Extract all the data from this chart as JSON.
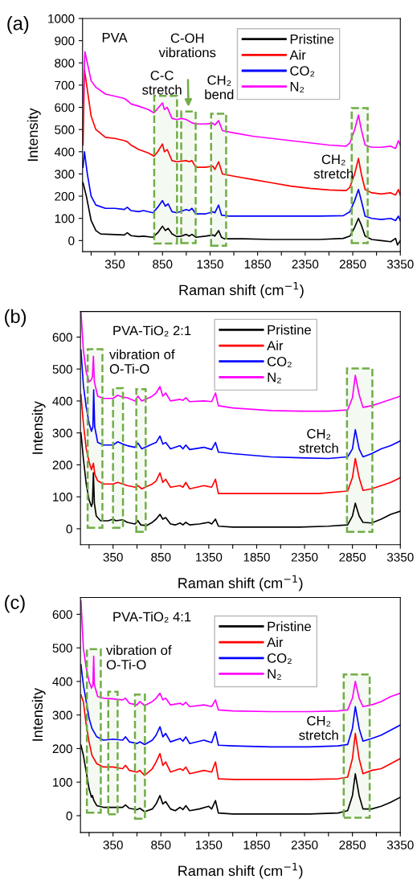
{
  "chart_data": [
    {
      "type": "line",
      "xlabel": "Raman shift (cm$^{−1}$)",
      "ylabel": "Intensity",
      "xlim": [
        10,
        3350
      ],
      "ylim": [
        -50,
        1000
      ],
      "xticks": [
        350,
        850,
        1350,
        1850,
        2350,
        2850,
        3350,
        {
          "value": 100,
          "label": null
        },
        {
          "value": 600,
          "label": null
        },
        {
          "value": 1100,
          "label": null
        },
        {
          "value": 1600,
          "label": null
        },
        {
          "value": 2100,
          "label": null
        },
        {
          "value": 2600,
          "label": null
        },
        {
          "value": 3100,
          "label": null
        }
      ],
      "yticks": [
        0,
        100,
        200,
        300,
        400,
        500,
        600,
        700,
        800,
        900,
        1000
      ],
      "legend": "top right",
      "grid": false,
      "line_style": "solid",
      "marker": "none",
      "annotations": [
        "(a)",
        "PVA",
        "C-C\nstretch",
        "C-OH\nvibrations",
        "CH₂\nbend",
        "CH₂\nstretch"
      ],
      "bands": [
        {
          "axis": "x",
          "from": 763,
          "to": 1003,
          "color": "#70ad47"
        },
        {
          "axis": "x",
          "from": 1047,
          "to": 1199,
          "color": "#70ad47"
        },
        {
          "axis": "x",
          "from": 1361,
          "to": 1519,
          "color": "#70ad47"
        },
        {
          "axis": "x",
          "from": 2839,
          "to": 3007,
          "color": "#70ad47"
        }
      ],
      "series": [
        {
          "name": "Pristine",
          "color": "#000000",
          "x": [
            15,
            50,
            100,
            150,
            200,
            300,
            450,
            480,
            520,
            600,
            650,
            750,
            800,
            850,
            880,
            910,
            950,
            1000,
            1050,
            1100,
            1130,
            1160,
            1200,
            1300,
            1380,
            1400,
            1440,
            1470,
            1500,
            1700,
            2000,
            2500,
            2750,
            2820,
            2870,
            2910,
            2940,
            2980,
            3050,
            3150,
            3250,
            3300,
            3320,
            3350
          ],
          "values": [
            260,
            200,
            90,
            45,
            30,
            28,
            25,
            35,
            22,
            18,
            20,
            15,
            35,
            65,
            45,
            55,
            30,
            18,
            20,
            28,
            20,
            28,
            15,
            20,
            25,
            20,
            45,
            15,
            8,
            8,
            5,
            5,
            10,
            20,
            60,
            100,
            70,
            20,
            5,
            0,
            -5,
            10,
            -20,
            0
          ]
        },
        {
          "name": "Air",
          "color": "#ff0000",
          "x": [
            15,
            30,
            60,
            100,
            150,
            250,
            350,
            450,
            480,
            520,
            600,
            700,
            760,
            800,
            850,
            870,
            900,
            950,
            1000,
            1100,
            1130,
            1160,
            1200,
            1300,
            1380,
            1400,
            1440,
            1480,
            1600,
            1800,
            2000,
            2200,
            2400,
            2600,
            2780,
            2820,
            2870,
            2910,
            2940,
            2980,
            3050,
            3150,
            3250,
            3300,
            3330,
            3350
          ],
          "values": [
            430,
            770,
            680,
            560,
            500,
            465,
            460,
            450,
            445,
            430,
            410,
            395,
            380,
            400,
            435,
            400,
            410,
            360,
            355,
            360,
            355,
            360,
            330,
            330,
            335,
            320,
            355,
            300,
            290,
            275,
            260,
            245,
            235,
            228,
            225,
            240,
            300,
            370,
            300,
            230,
            215,
            210,
            215,
            205,
            230,
            205
          ]
        },
        {
          "name": "CO₂",
          "color": "#0000ff",
          "x": [
            15,
            30,
            60,
            100,
            150,
            250,
            350,
            450,
            480,
            520,
            600,
            650,
            750,
            800,
            850,
            880,
            910,
            950,
            1000,
            1100,
            1130,
            1160,
            1200,
            1300,
            1380,
            1400,
            1440,
            1470,
            1550,
            2000,
            2500,
            2750,
            2820,
            2870,
            2910,
            2940,
            2980,
            3050,
            3150,
            3250,
            3300,
            3330,
            3350
          ],
          "values": [
            330,
            400,
            300,
            200,
            160,
            145,
            145,
            140,
            150,
            135,
            130,
            135,
            125,
            150,
            180,
            155,
            165,
            130,
            125,
            140,
            135,
            145,
            120,
            120,
            130,
            125,
            160,
            115,
            110,
            110,
            110,
            112,
            130,
            180,
            230,
            180,
            110,
            100,
            95,
            100,
            90,
            110,
            90
          ]
        },
        {
          "name": "N₂",
          "color": "#ff00ff",
          "x": [
            15,
            35,
            60,
            100,
            150,
            250,
            350,
            450,
            480,
            520,
            600,
            700,
            760,
            800,
            850,
            870,
            900,
            950,
            1000,
            1050,
            1100,
            1160,
            1200,
            1300,
            1380,
            1400,
            1440,
            1480,
            1600,
            1800,
            2000,
            2200,
            2400,
            2600,
            2780,
            2820,
            2870,
            2910,
            2940,
            2980,
            3050,
            3150,
            3250,
            3300,
            3330,
            3350
          ],
          "values": [
            620,
            850,
            800,
            720,
            690,
            660,
            650,
            640,
            630,
            615,
            605,
            590,
            575,
            595,
            620,
            590,
            600,
            550,
            545,
            550,
            545,
            530,
            525,
            525,
            528,
            520,
            540,
            495,
            485,
            470,
            460,
            450,
            440,
            430,
            425,
            440,
            500,
            565,
            500,
            430,
            420,
            420,
            425,
            415,
            450,
            430
          ]
        }
      ]
    },
    {
      "type": "line",
      "xlabel": "Raman shift (cm$^{−1}$)",
      "ylabel": "Intensity",
      "xlim": [
        10,
        3350
      ],
      "ylim": [
        -50,
        680
      ],
      "xticks": [
        350,
        850,
        1350,
        1850,
        2350,
        2850,
        3350,
        {
          "value": 100,
          "label": null
        },
        {
          "value": 600,
          "label": null
        },
        {
          "value": 1100,
          "label": null
        },
        {
          "value": 1600,
          "label": null
        },
        {
          "value": 2100,
          "label": null
        },
        {
          "value": 2600,
          "label": null
        },
        {
          "value": 3100,
          "label": null
        }
      ],
      "yticks": [
        0,
        100,
        200,
        300,
        400,
        500,
        600
      ],
      "legend": "top right",
      "grid": false,
      "line_style": "solid",
      "marker": "none",
      "annotations": [
        "(b)",
        "PVA-TiO₂ 2:1",
        "vibration of\nO-Ti-O",
        "CH₂\nstretch"
      ],
      "bands": [
        {
          "axis": "x",
          "from": 85,
          "to": 239,
          "color": "#70ad47"
        },
        {
          "axis": "x",
          "from": 350,
          "to": 454,
          "color": "#70ad47"
        },
        {
          "axis": "x",
          "from": 593,
          "to": 691,
          "color": "#70ad47"
        },
        {
          "axis": "x",
          "from": 2793,
          "to": 3058,
          "color": "#70ad47"
        }
      ],
      "series": [
        {
          "name": "Pristine",
          "color": "#000000",
          "x": [
            15,
            40,
            70,
            100,
            125,
            135,
            145,
            155,
            175,
            220,
            300,
            350,
            380,
            450,
            500,
            580,
            610,
            640,
            700,
            760,
            800,
            840,
            870,
            900,
            950,
            1000,
            1050,
            1080,
            1110,
            1150,
            1250,
            1350,
            1380,
            1420,
            1450,
            1600,
            2000,
            2300,
            2600,
            2800,
            2850,
            2880,
            2920,
            2960,
            3050,
            3150,
            3250,
            3350
          ],
          "values": [
            300,
            220,
            140,
            90,
            70,
            80,
            175,
            80,
            40,
            25,
            25,
            30,
            25,
            28,
            20,
            15,
            25,
            12,
            10,
            20,
            30,
            45,
            30,
            35,
            15,
            12,
            18,
            12,
            20,
            12,
            15,
            20,
            15,
            30,
            8,
            5,
            5,
            5,
            8,
            12,
            40,
            80,
            40,
            20,
            18,
            30,
            45,
            55
          ]
        },
        {
          "name": "Air",
          "color": "#ff0000",
          "x": [
            15,
            40,
            70,
            100,
            125,
            145,
            160,
            190,
            250,
            350,
            400,
            450,
            500,
            580,
            610,
            650,
            760,
            800,
            840,
            870,
            900,
            950,
            1050,
            1080,
            1110,
            1150,
            1300,
            1380,
            1420,
            1450,
            1600,
            2000,
            2500,
            2800,
            2850,
            2880,
            2920,
            2960,
            3050,
            3150,
            3250,
            3350
          ],
          "values": [
            420,
            330,
            250,
            210,
            185,
            205,
            170,
            150,
            140,
            140,
            145,
            140,
            135,
            130,
            135,
            125,
            140,
            150,
            175,
            145,
            155,
            130,
            135,
            130,
            145,
            125,
            135,
            130,
            155,
            110,
            110,
            110,
            110,
            118,
            160,
            220,
            160,
            120,
            125,
            135,
            145,
            160
          ]
        },
        {
          "name": "CO₂",
          "color": "#0000ff",
          "x": [
            15,
            40,
            70,
            100,
            125,
            140,
            148,
            158,
            190,
            250,
            350,
            400,
            450,
            500,
            580,
            610,
            650,
            760,
            800,
            840,
            870,
            900,
            950,
            1050,
            1080,
            1110,
            1150,
            1300,
            1380,
            1420,
            1450,
            1600,
            2000,
            2300,
            2600,
            2800,
            2850,
            2880,
            2920,
            2960,
            3050,
            3150,
            3250,
            3350
          ],
          "values": [
            560,
            450,
            380,
            330,
            305,
            320,
            435,
            320,
            270,
            262,
            262,
            272,
            265,
            260,
            255,
            268,
            250,
            265,
            270,
            290,
            265,
            270,
            250,
            260,
            250,
            262,
            248,
            255,
            248,
            270,
            240,
            235,
            225,
            222,
            220,
            225,
            250,
            310,
            250,
            225,
            235,
            250,
            260,
            275
          ]
        },
        {
          "name": "N₂",
          "color": "#ff00ff",
          "x": [
            15,
            40,
            70,
            100,
            120,
            135,
            145,
            155,
            190,
            250,
            350,
            400,
            450,
            500,
            580,
            610,
            650,
            760,
            800,
            840,
            870,
            900,
            950,
            1050,
            1080,
            1110,
            1150,
            1300,
            1380,
            1420,
            1450,
            1600,
            2000,
            2300,
            2600,
            2800,
            2850,
            2880,
            2920,
            2960,
            3050,
            3150,
            3250,
            3350
          ],
          "values": [
            680,
            560,
            490,
            460,
            465,
            475,
            540,
            460,
            415,
            408,
            408,
            418,
            412,
            410,
            400,
            415,
            400,
            415,
            425,
            445,
            415,
            425,
            400,
            405,
            402,
            410,
            398,
            400,
            398,
            425,
            385,
            378,
            370,
            368,
            368,
            372,
            410,
            480,
            420,
            380,
            385,
            395,
            405,
            415
          ]
        }
      ]
    },
    {
      "type": "line",
      "xlabel": "Raman shift (cm$^{−1}$)",
      "ylabel": "Intensity",
      "xlim": [
        10,
        3350
      ],
      "ylim": [
        -50,
        650
      ],
      "xticks": [
        350,
        850,
        1350,
        1850,
        2350,
        2850,
        3350,
        {
          "value": 100,
          "label": null
        },
        {
          "value": 600,
          "label": null
        },
        {
          "value": 1100,
          "label": null
        },
        {
          "value": 1600,
          "label": null
        },
        {
          "value": 2100,
          "label": null
        },
        {
          "value": 2600,
          "label": null
        },
        {
          "value": 3100,
          "label": null
        }
      ],
      "yticks": [
        0,
        100,
        200,
        300,
        400,
        500,
        600
      ],
      "legend": "top right",
      "grid": false,
      "line_style": "solid",
      "marker": "none",
      "annotations": [
        "(c)",
        "PVA-TiO₂ 4:1",
        "vibration of\nO-Ti-O",
        "CH₂\nstretch"
      ],
      "bands": [
        {
          "axis": "x",
          "from": 77,
          "to": 222,
          "color": "#70ad47"
        },
        {
          "axis": "x",
          "from": 300,
          "to": 398,
          "color": "#70ad47"
        },
        {
          "axis": "x",
          "from": 579,
          "to": 683,
          "color": "#70ad47"
        },
        {
          "axis": "x",
          "from": 2759,
          "to": 3030,
          "color": "#70ad47"
        }
      ],
      "series": [
        {
          "name": "Pristine",
          "color": "#000000",
          "x": [
            15,
            40,
            70,
            100,
            125,
            135,
            150,
            180,
            250,
            350,
            450,
            480,
            520,
            600,
            630,
            680,
            760,
            800,
            840,
            870,
            900,
            950,
            1000,
            1050,
            1080,
            1110,
            1150,
            1250,
            1350,
            1380,
            1420,
            1450,
            1600,
            2000,
            2400,
            2700,
            2800,
            2850,
            2880,
            2920,
            2960,
            3050,
            3150,
            3250,
            3350
          ],
          "values": [
            210,
            180,
            130,
            80,
            55,
            60,
            45,
            30,
            25,
            25,
            25,
            32,
            22,
            18,
            22,
            12,
            20,
            35,
            60,
            35,
            42,
            20,
            15,
            25,
            18,
            30,
            15,
            20,
            28,
            20,
            45,
            8,
            5,
            5,
            5,
            8,
            15,
            60,
            125,
            60,
            20,
            20,
            28,
            40,
            55
          ]
        },
        {
          "name": "Air",
          "color": "#ff0000",
          "x": [
            15,
            40,
            70,
            100,
            130,
            180,
            250,
            350,
            450,
            480,
            520,
            600,
            630,
            680,
            760,
            800,
            840,
            870,
            900,
            950,
            1050,
            1080,
            1110,
            1150,
            1300,
            1380,
            1420,
            1450,
            1600,
            2000,
            2400,
            2700,
            2800,
            2850,
            2880,
            2920,
            2960,
            3050,
            3150,
            3250,
            3350
          ],
          "values": [
            360,
            340,
            270,
            220,
            180,
            155,
            145,
            145,
            140,
            150,
            135,
            130,
            135,
            120,
            140,
            160,
            185,
            150,
            160,
            130,
            140,
            135,
            145,
            125,
            135,
            130,
            160,
            110,
            108,
            108,
            108,
            110,
            115,
            170,
            245,
            170,
            125,
            135,
            140,
            155,
            170
          ]
        },
        {
          "name": "CO₂",
          "color": "#0000ff",
          "x": [
            15,
            40,
            70,
            100,
            130,
            180,
            250,
            350,
            450,
            480,
            520,
            600,
            630,
            680,
            760,
            800,
            840,
            870,
            900,
            950,
            1050,
            1080,
            1110,
            1150,
            1300,
            1380,
            1420,
            1450,
            1600,
            2000,
            2400,
            2700,
            2800,
            2850,
            2880,
            2920,
            2960,
            3050,
            3150,
            3250,
            3350
          ],
          "values": [
            450,
            390,
            340,
            290,
            260,
            235,
            225,
            228,
            225,
            235,
            220,
            215,
            220,
            212,
            225,
            240,
            265,
            235,
            245,
            220,
            230,
            222,
            235,
            215,
            225,
            218,
            250,
            210,
            208,
            205,
            205,
            208,
            212,
            260,
            325,
            260,
            222,
            230,
            240,
            255,
            270
          ]
        },
        {
          "name": "N₂",
          "color": "#ff00ff",
          "x": [
            15,
            40,
            70,
            100,
            125,
            140,
            148,
            155,
            190,
            250,
            350,
            450,
            480,
            520,
            600,
            630,
            680,
            760,
            800,
            840,
            870,
            900,
            950,
            1050,
            1080,
            1110,
            1150,
            1300,
            1380,
            1420,
            1450,
            1600,
            2000,
            2400,
            2700,
            2800,
            2850,
            2880,
            2920,
            2960,
            3050,
            3150,
            3250,
            3350
          ],
          "values": [
            640,
            500,
            440,
            400,
            380,
            390,
            475,
            390,
            355,
            350,
            348,
            345,
            350,
            335,
            330,
            340,
            328,
            340,
            350,
            365,
            345,
            350,
            330,
            335,
            330,
            338,
            325,
            330,
            325,
            345,
            315,
            312,
            310,
            310,
            312,
            315,
            350,
            400,
            350,
            325,
            330,
            340,
            355,
            365
          ]
        }
      ]
    }
  ]
}
